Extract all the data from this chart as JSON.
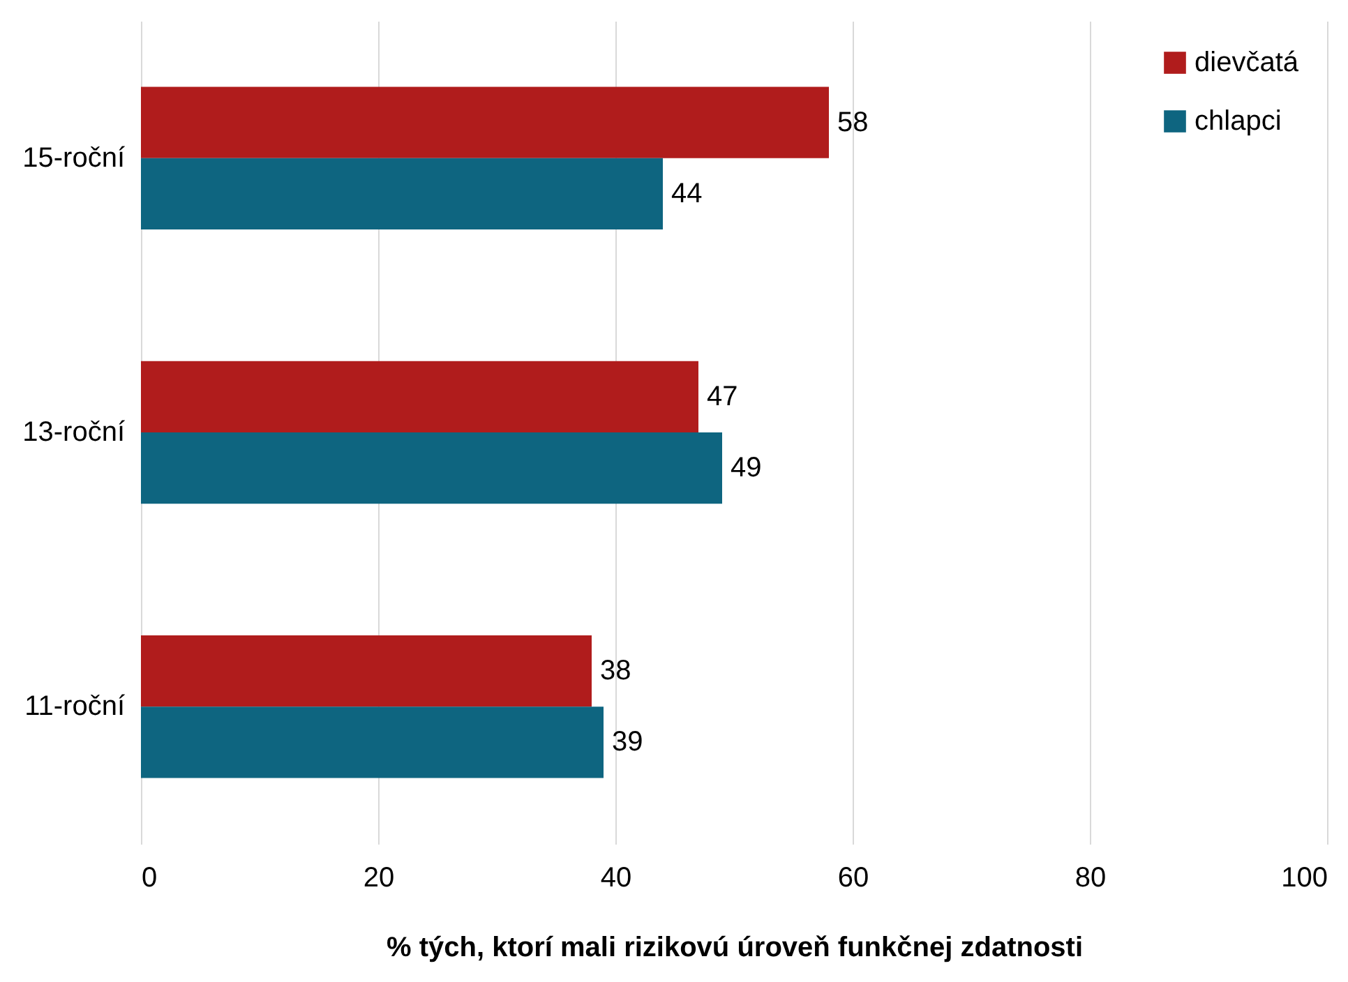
{
  "chart_data": {
    "type": "bar",
    "orientation": "horizontal",
    "xlabel": "% tých, ktorí mali rizikovú úroveň funkčnej zdatnosti",
    "categories": [
      "15-roční",
      "13-roční",
      "11-roční"
    ],
    "series": [
      {
        "name": "dievčatá",
        "color": "#b01c1c",
        "values": [
          58,
          47,
          38
        ]
      },
      {
        "name": "chlapci",
        "color": "#0e6580",
        "values": [
          44,
          49,
          39
        ]
      }
    ],
    "xlim": [
      0,
      100
    ],
    "xticks": [
      0,
      20,
      40,
      60,
      80,
      100
    ],
    "grid": "x",
    "legend": "top right",
    "data_labels": true
  }
}
